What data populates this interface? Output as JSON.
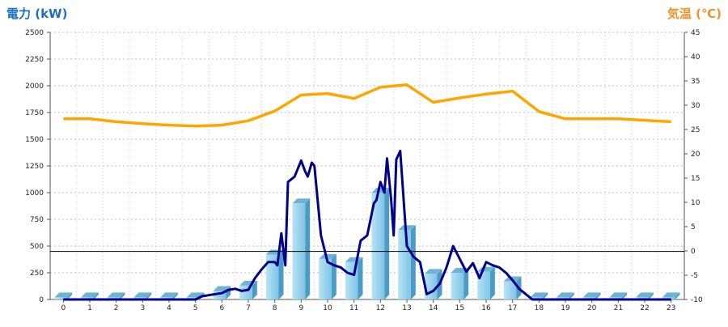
{
  "chart_data": {
    "type": "bar+line",
    "left_axis_title": "電力 (kW)",
    "right_axis_title": "気温 (℃)",
    "x_ticks": [
      "0",
      "1",
      "2",
      "3",
      "4",
      "5",
      "6",
      "7",
      "8",
      "9",
      "10",
      "11",
      "12",
      "13",
      "14",
      "15",
      "16",
      "17",
      "18",
      "19",
      "20",
      "21",
      "22",
      "23"
    ],
    "left_ylim": [
      0,
      2500
    ],
    "left_ticks": [
      0,
      250,
      500,
      750,
      1000,
      1250,
      1500,
      1750,
      2000,
      2250,
      2500
    ],
    "right_ylim": [
      -10,
      45
    ],
    "right_ticks": [
      -10,
      -5,
      0,
      5,
      10,
      15,
      20,
      25,
      30,
      35,
      40,
      45
    ],
    "grid": true,
    "reference_line_left": 450,
    "bars": {
      "x": [
        0,
        1,
        2,
        3,
        4,
        5,
        6,
        7,
        8,
        9,
        10,
        11,
        12,
        13,
        14,
        15,
        16,
        17,
        18,
        19,
        20,
        21,
        22,
        23
      ],
      "values": [
        20,
        20,
        20,
        20,
        20,
        20,
        80,
        130,
        420,
        900,
        380,
        350,
        1000,
        650,
        240,
        250,
        260,
        170,
        20,
        20,
        20,
        20,
        20,
        20
      ],
      "color": "#87ceeb"
    },
    "power_line": {
      "x": [
        0,
        1,
        2,
        3,
        4,
        5,
        5.25,
        5.5,
        5.75,
        6,
        6.25,
        6.5,
        6.75,
        7,
        7.25,
        7.5,
        7.75,
        8,
        8.1,
        8.25,
        8.4,
        8.5,
        8.75,
        9,
        9.15,
        9.25,
        9.4,
        9.5,
        9.75,
        10,
        10.25,
        10.5,
        10.75,
        11,
        11.25,
        11.5,
        11.75,
        11.85,
        12,
        12.15,
        12.25,
        12.4,
        12.5,
        12.6,
        12.75,
        13,
        13.25,
        13.5,
        13.75,
        14,
        14.25,
        14.5,
        14.75,
        15,
        15.25,
        15.5,
        15.75,
        16,
        16.25,
        16.5,
        16.75,
        17,
        17.25,
        17.5,
        17.75,
        18,
        19,
        20,
        21,
        22,
        23
      ],
      "values": [
        0,
        0,
        0,
        0,
        0,
        0,
        30,
        40,
        50,
        60,
        90,
        100,
        80,
        90,
        200,
        280,
        350,
        350,
        320,
        620,
        320,
        1100,
        1150,
        1300,
        1200,
        1150,
        1280,
        1250,
        600,
        350,
        320,
        300,
        250,
        230,
        550,
        600,
        900,
        930,
        1100,
        1000,
        1320,
        950,
        600,
        1310,
        1390,
        500,
        400,
        350,
        50,
        80,
        150,
        300,
        500,
        380,
        260,
        340,
        200,
        350,
        320,
        300,
        250,
        180,
        100,
        50,
        0,
        0,
        0,
        0,
        0,
        0,
        0
      ],
      "color": "#00008b"
    },
    "temperature_line": {
      "x": [
        0,
        1,
        2,
        3,
        4,
        5,
        6,
        7,
        8,
        9,
        10,
        11,
        12,
        13,
        14,
        15,
        16,
        17,
        18,
        19,
        20,
        21,
        22,
        23
      ],
      "values": [
        27.2,
        27.2,
        26.6,
        26.2,
        25.9,
        25.7,
        25.9,
        26.8,
        28.8,
        32.1,
        32.4,
        31.4,
        33.7,
        34.2,
        30.6,
        31.5,
        32.3,
        32.9,
        28.7,
        27.2,
        27.2,
        27.2,
        26.9,
        26.6
      ],
      "color": "#ffa500"
    }
  }
}
